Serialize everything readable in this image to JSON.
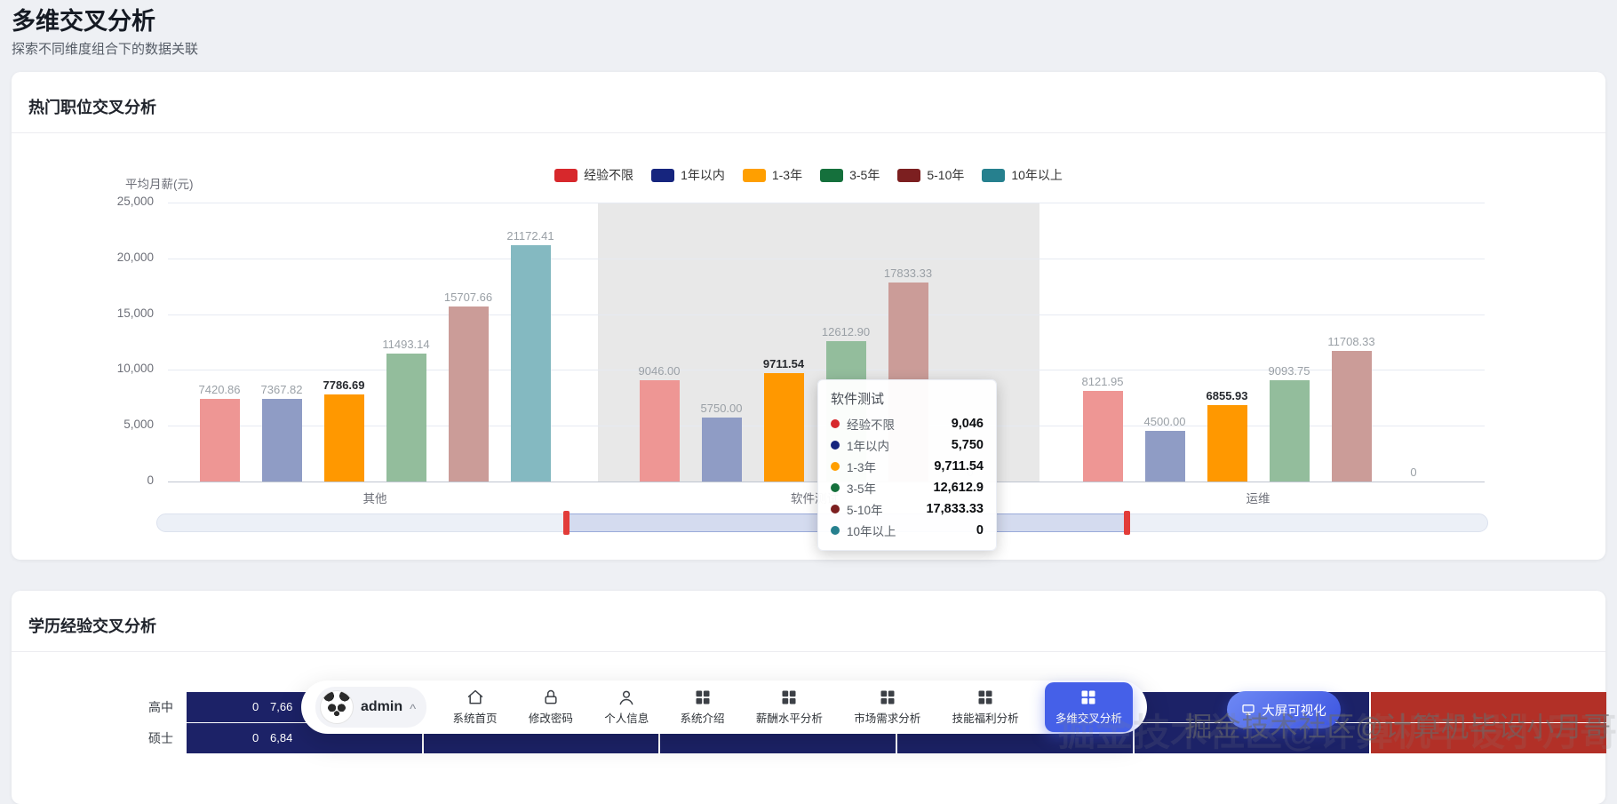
{
  "page": {
    "title": "多维交叉分析",
    "subtitle": "探索不同维度组合下的数据关联"
  },
  "cards": {
    "hot_jobs": {
      "title": "热门职位交叉分析"
    },
    "edu_exp": {
      "title": "学历经验交叉分析"
    }
  },
  "chart_data": [
    {
      "type": "bar",
      "title": "热门职位交叉分析",
      "ylabel": "平均月薪(元)",
      "ylim": [
        0,
        25000
      ],
      "ytick_labels": [
        "0",
        "5,000",
        "10,000",
        "15,000",
        "20,000",
        "25,000"
      ],
      "grid": true,
      "legend_position": "top",
      "categories": [
        "其他",
        "软件测试",
        "运维"
      ],
      "series": [
        {
          "name": "经验不限",
          "color": "#d7282c",
          "bar_color": "#ee9694",
          "values": [
            7420.86,
            9046.0,
            8121.95
          ],
          "labels": [
            "7420.86",
            "9046.00",
            "8121.95"
          ]
        },
        {
          "name": "1年以内",
          "color": "#16257e",
          "bar_color": "#8f9cc5",
          "values": [
            7367.82,
            5750.0,
            4500.0
          ],
          "labels": [
            "7367.82",
            "5750.00",
            "4500.00"
          ]
        },
        {
          "name": "1-3年",
          "color": "#ff9f00",
          "bar_color": "#ff9800",
          "highlighted": true,
          "values": [
            7786.69,
            9711.54,
            6855.93
          ],
          "labels": [
            "7786.69",
            "9711.54",
            "6855.93"
          ]
        },
        {
          "name": "3-5年",
          "color": "#15703c",
          "bar_color": "#93bd9c",
          "values": [
            11493.14,
            12612.9,
            9093.75
          ],
          "labels": [
            "11493.14",
            "12612.90",
            "9093.75"
          ]
        },
        {
          "name": "5-10年",
          "color": "#7c1f20",
          "bar_color": "#cb9c98",
          "values": [
            15707.66,
            17833.33,
            11708.33
          ],
          "labels": [
            "15707.66",
            "17833.33",
            "11708.33"
          ]
        },
        {
          "name": "10年以上",
          "color": "#26808e",
          "bar_color": "#84b9c1",
          "values": [
            21172.41,
            0,
            0
          ],
          "labels": [
            "21172.41",
            "0",
            "0"
          ]
        }
      ],
      "hover_category_index": 1
    },
    {
      "type": "heatmap",
      "title": "学历经验交叉分析",
      "row_labels": [
        "高中",
        "硕士"
      ],
      "cell_colors": [
        [
          "#1c2267",
          "#1c2267",
          "#1c2267",
          "#1c2267",
          "#1c2267",
          "#b23027"
        ],
        [
          "#1c2267",
          "#1c2267",
          "#1c2267",
          "#1c2267",
          "#1c2267",
          "#b23027"
        ]
      ],
      "visible_values": [
        [
          "0",
          "7,66"
        ],
        [
          "0",
          "6,84"
        ]
      ]
    }
  ],
  "tooltip": {
    "title": "软件测试",
    "rows": [
      {
        "name": "经验不限",
        "value": "9,046",
        "color": "#d7282c"
      },
      {
        "name": "1年以内",
        "value": "5,750",
        "color": "#16257e"
      },
      {
        "name": "1-3年",
        "value": "9,711.54",
        "color": "#ff9f00"
      },
      {
        "name": "3-5年",
        "value": "12,612.9",
        "color": "#15703c"
      },
      {
        "name": "5-10年",
        "value": "17,833.33",
        "color": "#7c1f20"
      },
      {
        "name": "10年以上",
        "value": "0",
        "color": "#26808e"
      }
    ]
  },
  "dock": {
    "user": {
      "name": "admin",
      "avatar": "panda"
    },
    "items": [
      {
        "label": "系统首页",
        "icon": "home",
        "active": false
      },
      {
        "label": "修改密码",
        "icon": "lock",
        "active": false
      },
      {
        "label": "个人信息",
        "icon": "user",
        "active": false
      },
      {
        "label": "系统介绍",
        "icon": "grid",
        "active": false
      },
      {
        "label": "薪酬水平分析",
        "icon": "grid",
        "active": false
      },
      {
        "label": "市场需求分析",
        "icon": "grid",
        "active": false
      },
      {
        "label": "技能福利分析",
        "icon": "grid",
        "active": false
      },
      {
        "label": "多维交叉分析",
        "icon": "grid",
        "active": true
      }
    ],
    "bigscreen_button": "大屏可视化"
  },
  "watermark": "掘金技术社区@计算机毕设小月哥",
  "colors": {
    "accent": "#4560e8",
    "card_bg": "#ffffff",
    "page_bg": "#eef0f4"
  }
}
